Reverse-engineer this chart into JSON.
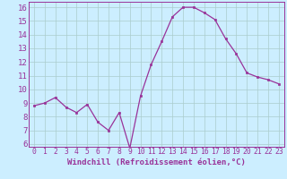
{
  "x": [
    0,
    1,
    2,
    3,
    4,
    5,
    6,
    7,
    8,
    9,
    10,
    11,
    12,
    13,
    14,
    15,
    16,
    17,
    18,
    19,
    20,
    21,
    22,
    23
  ],
  "y": [
    8.8,
    9.0,
    9.4,
    8.7,
    8.3,
    8.9,
    7.6,
    7.0,
    8.3,
    5.7,
    9.5,
    11.8,
    13.5,
    15.3,
    16.0,
    16.0,
    15.6,
    15.1,
    13.7,
    12.6,
    11.2,
    10.9,
    10.7,
    10.4
  ],
  "line_color": "#993399",
  "marker_color": "#993399",
  "bg_color": "#cceeff",
  "grid_color": "#aacccc",
  "xlabel": "Windchill (Refroidissement éolien,°C)",
  "ylim": [
    5.8,
    16.4
  ],
  "yticks": [
    6,
    7,
    8,
    9,
    10,
    11,
    12,
    13,
    14,
    15,
    16
  ],
  "xlim": [
    -0.5,
    23.5
  ],
  "xticks": [
    0,
    1,
    2,
    3,
    4,
    5,
    6,
    7,
    8,
    9,
    10,
    11,
    12,
    13,
    14,
    15,
    16,
    17,
    18,
    19,
    20,
    21,
    22,
    23
  ],
  "tick_color": "#993399",
  "label_color": "#993399",
  "xlabel_fontsize": 6.5,
  "ytick_fontsize": 6.5,
  "xtick_fontsize": 5.8
}
